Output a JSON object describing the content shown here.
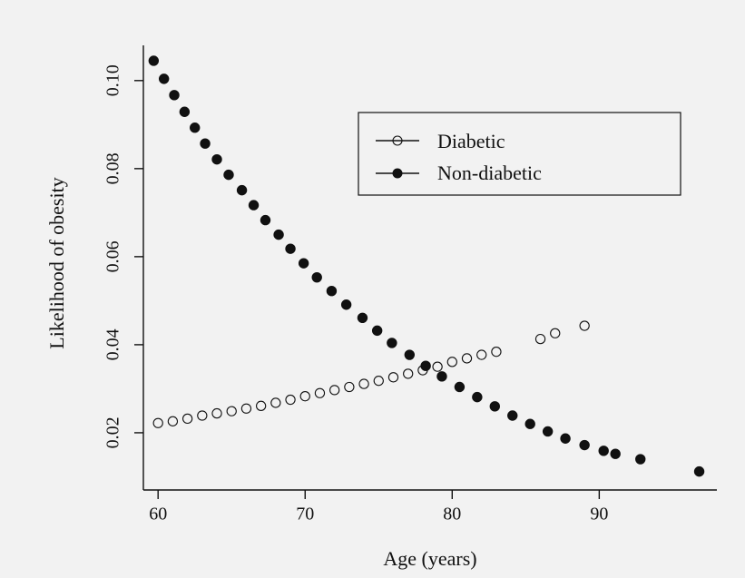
{
  "chart_data": {
    "type": "scatter",
    "title": "",
    "xlabel": "Age (years)",
    "ylabel": "Likelihood of obesity",
    "xlim": [
      59,
      98
    ],
    "ylim": [
      0.007,
      0.108
    ],
    "x_ticks": [
      60,
      70,
      80,
      90
    ],
    "x_tick_labels": [
      "60",
      "70",
      "80",
      "90"
    ],
    "y_ticks": [
      0.02,
      0.04,
      0.06,
      0.08,
      0.1
    ],
    "y_tick_labels": [
      "0.02",
      "0.04",
      "0.06",
      "0.08",
      "0.10"
    ],
    "grid": false,
    "legend": {
      "placement": "top-right",
      "entries": [
        "Diabetic",
        "Non-diabetic"
      ]
    },
    "series": [
      {
        "name": "Diabetic",
        "marker": "open-circle",
        "x": [
          60,
          61,
          62,
          63,
          64,
          65,
          66,
          67,
          68,
          69,
          70,
          71,
          72,
          73,
          74,
          75,
          76,
          77,
          78,
          79,
          80,
          81,
          82,
          83,
          86,
          87,
          89
        ],
        "y": [
          0.0222,
          0.0226,
          0.0232,
          0.0239,
          0.0244,
          0.0249,
          0.0255,
          0.0261,
          0.0268,
          0.0275,
          0.0283,
          0.029,
          0.0297,
          0.0304,
          0.0311,
          0.0318,
          0.0326,
          0.0334,
          0.0342,
          0.035,
          0.0361,
          0.0369,
          0.0377,
          0.0384,
          0.0413,
          0.0426,
          0.0443
        ]
      },
      {
        "name": "Non-diabetic",
        "marker": "filled-circle",
        "x": [
          59.7,
          60.4,
          61.1,
          61.8,
          62.5,
          63.2,
          64.0,
          64.8,
          65.7,
          66.5,
          67.3,
          68.2,
          69.0,
          69.9,
          70.8,
          71.8,
          72.8,
          73.9,
          74.9,
          75.9,
          77.1,
          78.2,
          79.3,
          80.5,
          81.7,
          82.9,
          84.1,
          85.3,
          86.5,
          87.7,
          89.0,
          90.3,
          91.1,
          92.8,
          96.8
        ],
        "y": [
          0.1045,
          0.1004,
          0.0967,
          0.0929,
          0.0893,
          0.0857,
          0.0821,
          0.0786,
          0.0751,
          0.0717,
          0.0683,
          0.065,
          0.0618,
          0.0585,
          0.0553,
          0.0522,
          0.0491,
          0.0461,
          0.0432,
          0.0404,
          0.0377,
          0.0352,
          0.0328,
          0.0304,
          0.0281,
          0.026,
          0.0239,
          0.022,
          0.0203,
          0.0187,
          0.0172,
          0.0159,
          0.0152,
          0.014,
          0.0112
        ]
      }
    ]
  }
}
